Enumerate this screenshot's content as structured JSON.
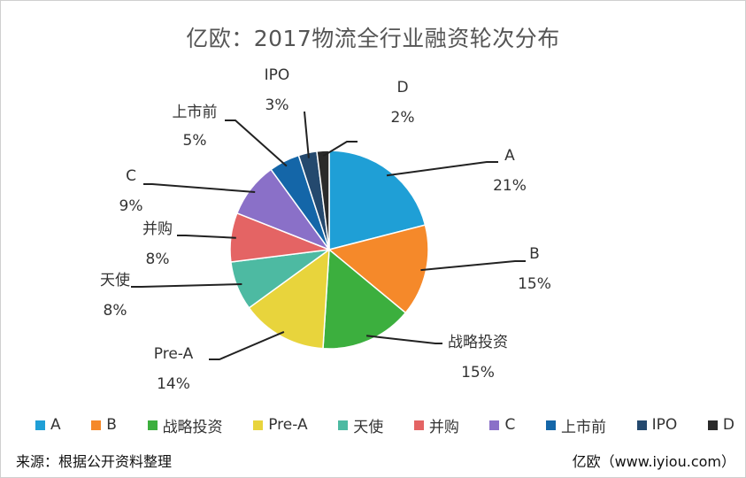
{
  "chart_data": {
    "type": "pie",
    "title": "亿欧：2017物流全行业融资轮次分布",
    "legend_position": "bottom",
    "slices": [
      {
        "label": "A",
        "value": 21,
        "display": "21%",
        "color": "#1f9fd6"
      },
      {
        "label": "B",
        "value": 15,
        "display": "15%",
        "color": "#f5892a"
      },
      {
        "label": "战略投资",
        "value": 15,
        "display": "15%",
        "color": "#3caf3e"
      },
      {
        "label": "Pre-A",
        "value": 14,
        "display": "14%",
        "color": "#e8d43c"
      },
      {
        "label": "天使",
        "value": 8,
        "display": "8%",
        "color": "#4dbaa2"
      },
      {
        "label": "并购",
        "value": 8,
        "display": "8%",
        "color": "#e46464"
      },
      {
        "label": "C",
        "value": 9,
        "display": "9%",
        "color": "#8a70c8"
      },
      {
        "label": "上市前",
        "value": 5,
        "display": "5%",
        "color": "#1466a8"
      },
      {
        "label": "IPO",
        "value": 3,
        "display": "3%",
        "color": "#24496e"
      },
      {
        "label": "D",
        "value": 2,
        "display": "2%",
        "color": "#2a2a2a"
      }
    ]
  },
  "footer": {
    "source": "来源：根据公开资料整理",
    "credit": "亿欧（www.iyiou.com）"
  }
}
